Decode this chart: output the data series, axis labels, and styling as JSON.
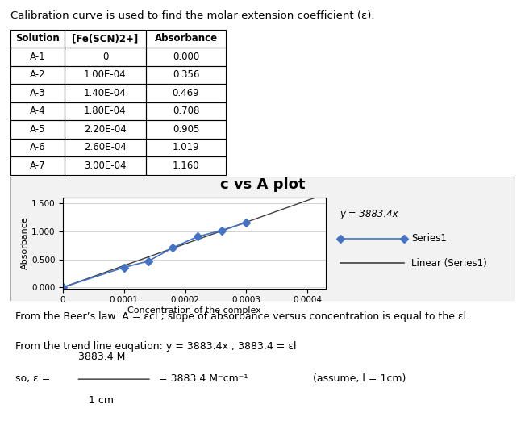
{
  "title_text": "Calibration curve is used to find the molar extension coefficient (ε).",
  "table_headers": [
    "Solution",
    "[Fe(SCN)2+]",
    "Absorbance"
  ],
  "table_rows": [
    [
      "A-1",
      "0",
      "0.000"
    ],
    [
      "A-2",
      "1.00E-04",
      "0.356"
    ],
    [
      "A-3",
      "1.40E-04",
      "0.469"
    ],
    [
      "A-4",
      "1.80E-04",
      "0.708"
    ],
    [
      "A-5",
      "2.20E-04",
      "0.905"
    ],
    [
      "A-6",
      "2.60E-04",
      "1.019"
    ],
    [
      "A-7",
      "3.00E-04",
      "1.160"
    ]
  ],
  "x_data": [
    0,
    0.0001,
    0.00014,
    0.00018,
    0.00022,
    0.00026,
    0.0003
  ],
  "y_data": [
    0.0,
    0.356,
    0.469,
    0.708,
    0.905,
    1.019,
    1.16
  ],
  "chart_title": "c vs A plot",
  "xlabel": "Concentration of the complex",
  "ylabel": "Absorbance",
  "yticks": [
    0.0,
    0.5,
    1.0,
    1.5
  ],
  "ytick_labels": [
    "0.000",
    "0.500",
    "1.000",
    "1.500"
  ],
  "xticks": [
    0,
    0.0001,
    0.0002,
    0.0003,
    0.0004
  ],
  "xtick_labels": [
    "0",
    "0.0001",
    "0.0002",
    "0.0003",
    "0.0004"
  ],
  "xlim": [
    0,
    0.00043
  ],
  "ylim": [
    -0.02,
    1.6
  ],
  "series_color": "#4472C4",
  "trendline_color": "#404040",
  "slope": 3883.4,
  "equation_text": "y = 3883.4x",
  "legend_series": "Series1",
  "legend_linear": "Linear (Series1)",
  "footer_line1": "From the Beer’s law: A = εcl ; slope of absorbance versus concentration is equal to the εl.",
  "footer_line2": "From the trend line euqation: y = 3883.4x ; 3883.4 = εl",
  "footer_pre": "so, ε = ",
  "footer_numerator": "3883.4 M",
  "footer_denominator": "1 cm",
  "footer_result": "= 3883.4 M⁻cm⁻¹",
  "footer_assume": "(assume, l = 1cm)"
}
